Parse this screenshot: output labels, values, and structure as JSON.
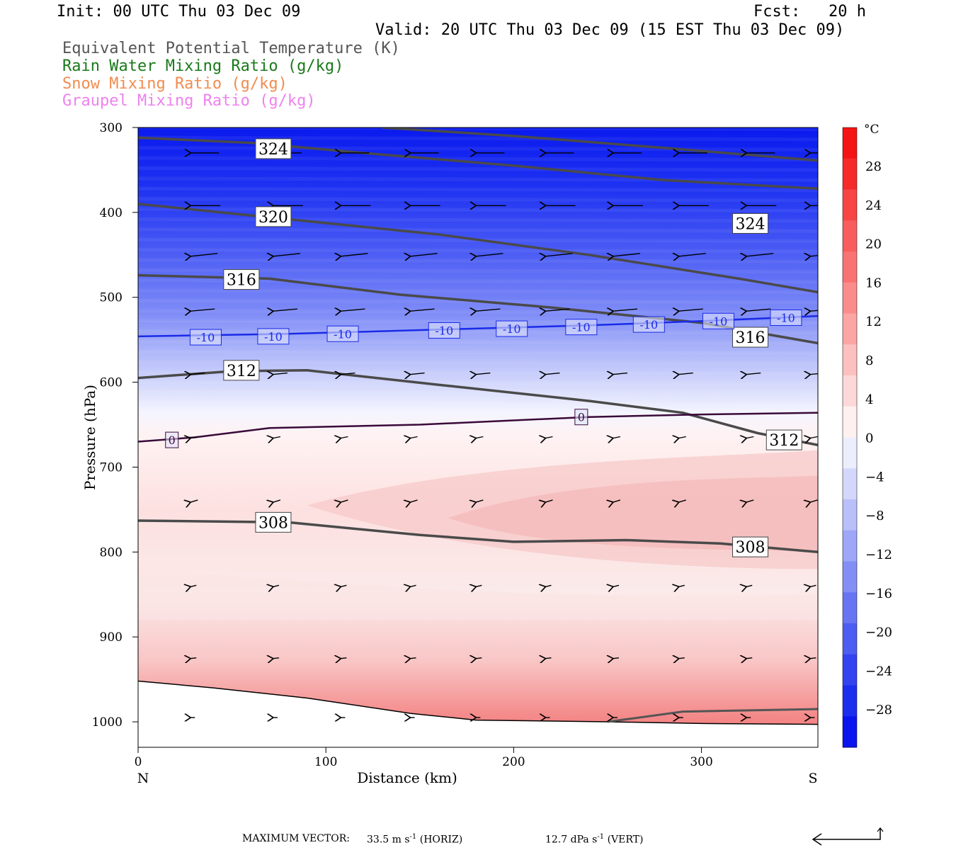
{
  "header": {
    "init": "Init: 00 UTC Thu 03 Dec 09",
    "fcst": "Fcst:   20 h",
    "valid": "Valid: 20 UTC Thu 03 Dec 09 (15 EST Thu 03 Dec 09)"
  },
  "legend": [
    {
      "label": "Equivalent Potential Temperature (K)",
      "color": "#555555"
    },
    {
      "label": "Rain Water Mixing Ratio (g/kg)",
      "color": "#1a7a1a"
    },
    {
      "label": "Snow Mixing Ratio (g/kg)",
      "color": "#f08c50"
    },
    {
      "label": "Graupel Mixing Ratio (g/kg)",
      "color": "#ee82ee"
    }
  ],
  "chart_data": {
    "type": "cross-section contour",
    "xlabel": "Distance (km)",
    "ylabel": "Pressure (hPa)",
    "xlim": [
      0,
      362
    ],
    "ylim": [
      1030,
      300
    ],
    "x_ticks": [
      0,
      100,
      200,
      300
    ],
    "y_ticks": [
      300,
      400,
      500,
      600,
      700,
      800,
      900,
      1000
    ],
    "x_end_labels": {
      "left": "N",
      "right": "S"
    },
    "colorbar": {
      "unit": "°C",
      "ticks": [
        28,
        24,
        20,
        16,
        12,
        8,
        4,
        0,
        -4,
        -8,
        -12,
        -16,
        -20,
        -24,
        -28
      ]
    },
    "theta_e_contours": [
      {
        "label": "324",
        "points": [
          [
            0,
            312
          ],
          [
            60,
            318
          ],
          [
            120,
            330
          ],
          [
            200,
            345
          ],
          [
            280,
            362
          ],
          [
            362,
            372
          ]
        ]
      },
      {
        "label": "324",
        "points": [
          [
            130,
            300
          ],
          [
            200,
            310
          ],
          [
            280,
            324
          ],
          [
            362,
            339
          ]
        ]
      },
      {
        "label": "320",
        "points": [
          [
            0,
            390
          ],
          [
            80,
            408
          ],
          [
            160,
            426
          ],
          [
            240,
            450
          ],
          [
            320,
            478
          ],
          [
            362,
            494
          ]
        ]
      },
      {
        "label": "316",
        "points": [
          [
            0,
            474
          ],
          [
            70,
            478
          ],
          [
            140,
            497
          ],
          [
            220,
            512
          ],
          [
            300,
            530
          ],
          [
            362,
            554
          ]
        ]
      },
      {
        "label": "312",
        "points": [
          [
            0,
            595
          ],
          [
            50,
            587
          ],
          [
            90,
            586
          ],
          [
            160,
            603
          ],
          [
            240,
            622
          ],
          [
            290,
            636
          ],
          [
            330,
            660
          ],
          [
            362,
            674
          ]
        ]
      },
      {
        "label": "308",
        "points": [
          [
            0,
            763
          ],
          [
            80,
            765
          ],
          [
            150,
            780
          ],
          [
            200,
            788
          ],
          [
            260,
            786
          ],
          [
            310,
            790
          ],
          [
            362,
            800
          ]
        ]
      }
    ],
    "temperature_contours": [
      {
        "label": "-10",
        "points": [
          [
            0,
            546
          ],
          [
            80,
            543
          ],
          [
            160,
            538
          ],
          [
            240,
            533
          ],
          [
            300,
            528
          ],
          [
            362,
            522
          ]
        ]
      },
      {
        "label": "0",
        "points": [
          [
            0,
            670
          ],
          [
            30,
            665
          ],
          [
            70,
            654
          ],
          [
            150,
            650
          ],
          [
            240,
            641
          ],
          [
            300,
            638
          ],
          [
            362,
            636
          ]
        ]
      }
    ],
    "labels_theta": [
      {
        "text": "324",
        "x": 72,
        "y": 325
      },
      {
        "text": "324",
        "x": 326,
        "y": 413
      },
      {
        "text": "320",
        "x": 72,
        "y": 405
      },
      {
        "text": "316",
        "x": 55,
        "y": 479
      },
      {
        "text": "316",
        "x": 326,
        "y": 547
      },
      {
        "text": "312",
        "x": 55,
        "y": 586
      },
      {
        "text": "312",
        "x": 344,
        "y": 668
      },
      {
        "text": "308",
        "x": 72,
        "y": 765
      },
      {
        "text": "308",
        "x": 326,
        "y": 794
      }
    ],
    "labels_temp": [
      {
        "text": "-10",
        "x": 36,
        "y": 547
      },
      {
        "text": "-10",
        "x": 72,
        "y": 546
      },
      {
        "text": "-10",
        "x": 109,
        "y": 543
      },
      {
        "text": "-10",
        "x": 163,
        "y": 539
      },
      {
        "text": "-10",
        "x": 199,
        "y": 537
      },
      {
        "text": "-10",
        "x": 236,
        "y": 535
      },
      {
        "text": "-10",
        "x": 272,
        "y": 532
      },
      {
        "text": "-10",
        "x": 309,
        "y": 528
      },
      {
        "text": "-10",
        "x": 345,
        "y": 524
      },
      {
        "text": "0",
        "x": 18,
        "y": 668
      },
      {
        "text": "0",
        "x": 236,
        "y": 641
      }
    ],
    "terrain": [
      [
        0,
        952
      ],
      [
        40,
        960
      ],
      [
        90,
        972
      ],
      [
        145,
        990
      ],
      [
        180,
        998
      ],
      [
        250,
        1000
      ],
      [
        300,
        1002
      ],
      [
        362,
        1003
      ]
    ],
    "max_vector": {
      "label": "MAXIMUM VECTOR:",
      "horiz": "33.5",
      "horiz_unit": "m s",
      "horiz_tag": "(HORIZ)",
      "vert": "12.7",
      "vert_unit": "dPa s",
      "vert_tag": "(VERT)",
      "exp": "-1"
    }
  }
}
